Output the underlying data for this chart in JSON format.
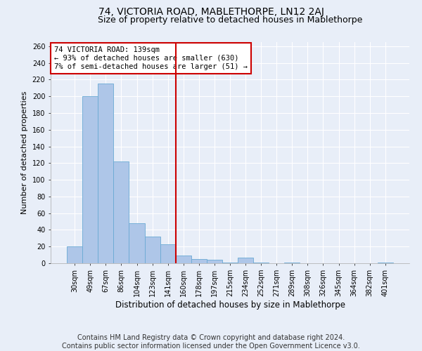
{
  "title": "74, VICTORIA ROAD, MABLETHORPE, LN12 2AJ",
  "subtitle": "Size of property relative to detached houses in Mablethorpe",
  "xlabel": "Distribution of detached houses by size in Mablethorpe",
  "ylabel": "Number of detached properties",
  "categories": [
    "30sqm",
    "49sqm",
    "67sqm",
    "86sqm",
    "104sqm",
    "123sqm",
    "141sqm",
    "160sqm",
    "178sqm",
    "197sqm",
    "215sqm",
    "234sqm",
    "252sqm",
    "271sqm",
    "289sqm",
    "308sqm",
    "326sqm",
    "345sqm",
    "364sqm",
    "382sqm",
    "401sqm"
  ],
  "values": [
    20,
    200,
    215,
    122,
    48,
    32,
    23,
    9,
    5,
    4,
    1,
    7,
    1,
    0,
    1,
    0,
    0,
    0,
    0,
    0,
    1
  ],
  "bar_color": "#aec6e8",
  "bar_edge_color": "#6aaad4",
  "vline_color": "#cc0000",
  "annotation_text": "74 VICTORIA ROAD: 139sqm\n← 93% of detached houses are smaller (630)\n7% of semi-detached houses are larger (51) →",
  "annotation_box_color": "#ffffff",
  "annotation_box_edge": "#cc0000",
  "ylim": [
    0,
    265
  ],
  "yticks": [
    0,
    20,
    40,
    60,
    80,
    100,
    120,
    140,
    160,
    180,
    200,
    220,
    240,
    260
  ],
  "background_color": "#e8eef8",
  "plot_background": "#e8eef8",
  "grid_color": "#ffffff",
  "footer_text": "Contains HM Land Registry data © Crown copyright and database right 2024.\nContains public sector information licensed under the Open Government Licence v3.0.",
  "title_fontsize": 10,
  "subtitle_fontsize": 9,
  "xlabel_fontsize": 8.5,
  "ylabel_fontsize": 8,
  "footer_fontsize": 7,
  "tick_fontsize": 7,
  "annotation_fontsize": 7.5
}
